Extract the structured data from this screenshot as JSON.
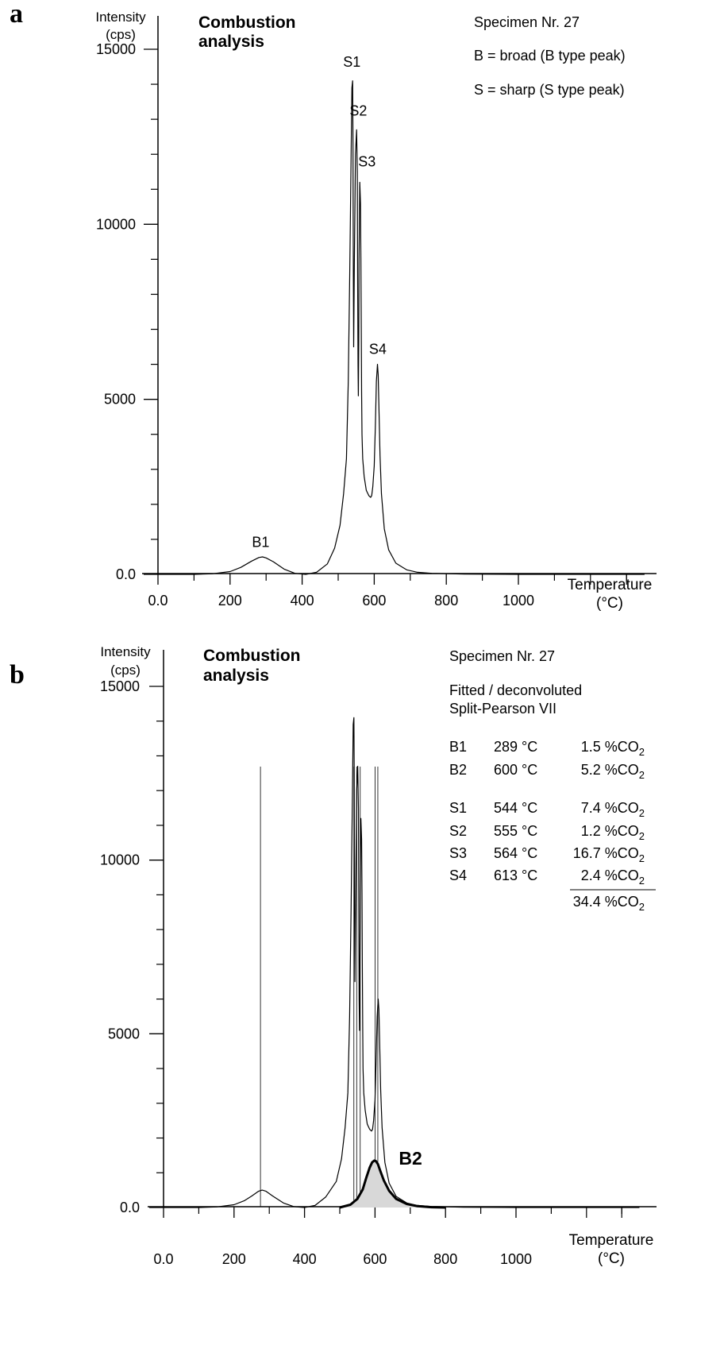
{
  "chart_data": [
    {
      "panel_label": "a",
      "type": "line",
      "title_line1": "Combustion",
      "title_line2": "analysis",
      "ylabel_line1": "Intensity",
      "ylabel_line2": "(cps)",
      "xlabel_line1": "Temperature",
      "xlabel_line2": "(°C)",
      "xlim": [
        0,
        1350
      ],
      "ylim": [
        0,
        15000
      ],
      "x_ticks": [
        {
          "value": 0,
          "label": "0.0"
        },
        {
          "value": 200,
          "label": "200"
        },
        {
          "value": 400,
          "label": "400"
        },
        {
          "value": 600,
          "label": "600"
        },
        {
          "value": 800,
          "label": "800"
        },
        {
          "value": 1000,
          "label": "1000"
        }
      ],
      "y_ticks": [
        {
          "value": 0,
          "label": "0.0"
        },
        {
          "value": 5000,
          "label": "5000"
        },
        {
          "value": 10000,
          "label": "10000"
        },
        {
          "value": 15000,
          "label": "15000"
        }
      ],
      "legend_lines": [
        "Specimen Nr. 27",
        "B = broad (B type peak)",
        "S = sharp (S type peak)"
      ],
      "peak_labels": [
        {
          "label": "B1",
          "x": 285,
          "y": 780
        },
        {
          "label": "S1",
          "x": 538,
          "y": 14500
        },
        {
          "label": "S2",
          "x": 556,
          "y": 13100
        },
        {
          "label": "S3",
          "x": 580,
          "y": 11650
        },
        {
          "label": "S4",
          "x": 610,
          "y": 6300
        }
      ],
      "series": [
        {
          "x": [
            0,
            100,
            150,
            200,
            230,
            260,
            280,
            290,
            300,
            320,
            350,
            380,
            410,
            440,
            470,
            490,
            505,
            515,
            523,
            528,
            532,
            536,
            538,
            540,
            541,
            542,
            543,
            545,
            548,
            551,
            553,
            554,
            555,
            556,
            557,
            558,
            560,
            562,
            563,
            564,
            565,
            566,
            568,
            572,
            578,
            585,
            590,
            593,
            596,
            600,
            603,
            606,
            609,
            611,
            613,
            616,
            620,
            628,
            640,
            660,
            690,
            720,
            760,
            850,
            1000,
            1200,
            1350
          ],
          "y": [
            0,
            0,
            15,
            80,
            200,
            380,
            480,
            500,
            470,
            360,
            150,
            30,
            0,
            60,
            300,
            750,
            1400,
            2300,
            3300,
            5500,
            8500,
            12000,
            13900,
            14100,
            12500,
            8500,
            6500,
            9000,
            12000,
            12700,
            11500,
            8500,
            6000,
            5100,
            6600,
            9000,
            11200,
            10600,
            9000,
            7000,
            5200,
            4000,
            3300,
            2800,
            2400,
            2250,
            2200,
            2250,
            2500,
            3100,
            4200,
            5500,
            6000,
            5700,
            4800,
            3400,
            2300,
            1300,
            700,
            320,
            130,
            60,
            30,
            10,
            0,
            0,
            0
          ]
        }
      ]
    },
    {
      "panel_label": "b",
      "type": "line",
      "title_line1": "Combustion",
      "title_line2": "analysis",
      "ylabel_line1": "Intensity",
      "ylabel_line2": "(cps)",
      "xlabel_line1": "Temperature",
      "xlabel_line2": "(°C)",
      "xlim": [
        0,
        1350
      ],
      "ylim": [
        0,
        15000
      ],
      "x_ticks": [
        {
          "value": 0,
          "label": "0.0"
        },
        {
          "value": 200,
          "label": "200"
        },
        {
          "value": 400,
          "label": "400"
        },
        {
          "value": 600,
          "label": "600"
        },
        {
          "value": 800,
          "label": "800"
        },
        {
          "value": 1000,
          "label": "1000"
        }
      ],
      "y_ticks": [
        {
          "value": 0,
          "label": "0.0"
        },
        {
          "value": 5000,
          "label": "5000"
        },
        {
          "value": 10000,
          "label": "10000"
        },
        {
          "value": 15000,
          "label": "15000"
        }
      ],
      "legend_lines": [
        "Specimen Nr. 27",
        "Fitted / deconvoluted",
        "Split-Pearson VII"
      ],
      "fit_table": [
        {
          "peak": "B1",
          "temp": "289 °C",
          "co2": "1.5 %CO",
          "sub": "2"
        },
        {
          "peak": "B2",
          "temp": "600 °C",
          "co2": "5.2 %CO",
          "sub": "2"
        },
        {
          "peak": "S1",
          "temp": "544 °C",
          "co2": "7.4 %CO",
          "sub": "2"
        },
        {
          "peak": "S2",
          "temp": "555 °C",
          "co2": "1.2 %CO",
          "sub": "2"
        },
        {
          "peak": "S3",
          "temp": "564 °C",
          "co2": "16.7 %CO",
          "sub": "2"
        },
        {
          "peak": "S4",
          "temp": "613 °C",
          "co2": "2.4 %CO",
          "sub": "2"
        }
      ],
      "fit_total": {
        "co2": "34.4 %CO",
        "sub": "2"
      },
      "b2_label": "B2",
      "b2_peak": {
        "x": 600,
        "y": 1350
      },
      "vertical_markers_x": [
        275,
        540,
        548,
        558,
        600,
        608
      ],
      "series": [
        {
          "x": [
            0,
            100,
            150,
            200,
            230,
            250,
            270,
            280,
            290,
            310,
            340,
            370,
            400,
            430,
            460,
            490,
            505,
            515,
            523,
            528,
            532,
            536,
            538,
            540,
            541,
            542,
            543,
            545,
            548,
            551,
            553,
            554,
            555,
            556,
            557,
            558,
            560,
            562,
            563,
            564,
            565,
            566,
            568,
            572,
            578,
            585,
            590,
            593,
            596,
            600,
            603,
            606,
            609,
            611,
            613,
            616,
            620,
            628,
            640,
            660,
            690,
            720,
            760,
            850,
            1000,
            1200,
            1350
          ],
          "y": [
            0,
            0,
            15,
            80,
            200,
            330,
            470,
            500,
            470,
            330,
            130,
            25,
            0,
            60,
            300,
            750,
            1400,
            2300,
            3300,
            5500,
            8500,
            12000,
            13900,
            14100,
            12500,
            8500,
            6500,
            9000,
            12000,
            12700,
            11500,
            8500,
            6000,
            5100,
            6600,
            9000,
            11200,
            10600,
            9000,
            7000,
            5200,
            4000,
            3300,
            2800,
            2400,
            2250,
            2200,
            2250,
            2500,
            3100,
            4200,
            5500,
            6000,
            5700,
            4800,
            3400,
            2300,
            1300,
            700,
            320,
            130,
            60,
            30,
            10,
            0,
            0,
            0
          ]
        },
        {
          "name": "B2",
          "x": [
            500,
            530,
            550,
            565,
            575,
            585,
            592,
            598,
            602,
            608,
            615,
            625,
            640,
            660,
            690,
            720,
            760,
            800
          ],
          "y": [
            0,
            80,
            250,
            520,
            850,
            1150,
            1300,
            1350,
            1340,
            1250,
            1050,
            780,
            480,
            250,
            100,
            40,
            10,
            0
          ]
        }
      ]
    }
  ]
}
